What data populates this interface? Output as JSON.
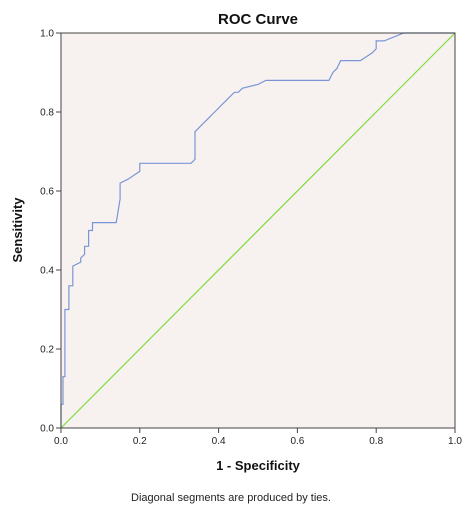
{
  "chart_data": {
    "type": "line",
    "title": "ROC Curve",
    "xlabel": "1 - Specificity",
    "ylabel": "Sensitivity",
    "caption": "Diagonal segments are produced by ties.",
    "xlim": [
      0,
      1
    ],
    "ylim": [
      0,
      1
    ],
    "xticks": [
      "0.0",
      "0.2",
      "0.4",
      "0.6",
      "0.8",
      "1.0"
    ],
    "yticks": [
      "0.0",
      "0.2",
      "0.4",
      "0.6",
      "0.8",
      "1.0"
    ],
    "grid": false,
    "legend": "none",
    "background_color": "#f7f2f0",
    "series": [
      {
        "color": "#7b96d6",
        "x": [
          0.0,
          0.0,
          0.005,
          0.005,
          0.01,
          0.01,
          0.02,
          0.02,
          0.03,
          0.03,
          0.05,
          0.05,
          0.06,
          0.06,
          0.07,
          0.07,
          0.08,
          0.08,
          0.09,
          0.09,
          0.14,
          0.15,
          0.15,
          0.17,
          0.2,
          0.2,
          0.33,
          0.34,
          0.34,
          0.35,
          0.36,
          0.37,
          0.38,
          0.39,
          0.4,
          0.41,
          0.42,
          0.43,
          0.44,
          0.45,
          0.46,
          0.5,
          0.52,
          0.68,
          0.69,
          0.7,
          0.71,
          0.76,
          0.79,
          0.8,
          0.8,
          0.82,
          0.87,
          1.0
        ],
        "y": [
          0.0,
          0.06,
          0.06,
          0.13,
          0.13,
          0.3,
          0.3,
          0.36,
          0.36,
          0.41,
          0.42,
          0.43,
          0.44,
          0.46,
          0.46,
          0.5,
          0.5,
          0.52,
          0.52,
          0.52,
          0.52,
          0.58,
          0.62,
          0.63,
          0.65,
          0.67,
          0.67,
          0.68,
          0.75,
          0.76,
          0.77,
          0.78,
          0.79,
          0.8,
          0.81,
          0.82,
          0.83,
          0.84,
          0.85,
          0.85,
          0.86,
          0.87,
          0.88,
          0.88,
          0.9,
          0.91,
          0.93,
          0.93,
          0.95,
          0.96,
          0.98,
          0.98,
          1.0,
          1.0
        ]
      },
      {
        "color": "#7ddc3a",
        "x": [
          0.0,
          1.0
        ],
        "y": [
          0.0,
          1.0
        ]
      }
    ]
  }
}
